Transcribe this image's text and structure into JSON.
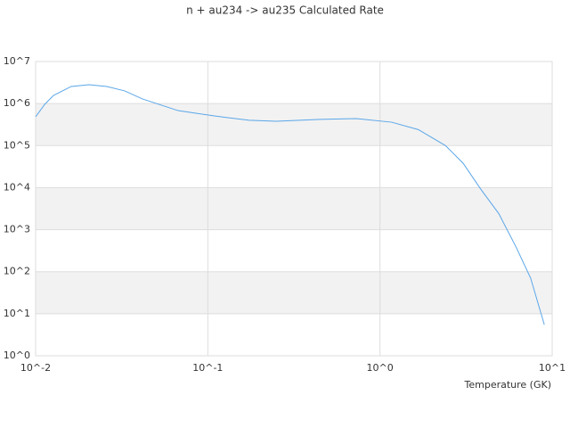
{
  "chart_data": {
    "type": "line",
    "title": "n + au234 -> au235 Calculated Rate",
    "x_label": "Temperature (GK)",
    "x": [
      0.01,
      0.0113,
      0.0127,
      0.0161,
      0.0204,
      0.0259,
      0.0329,
      0.0417,
      0.0672,
      0.108,
      0.174,
      0.25,
      0.45,
      0.73,
      1.17,
      1.67,
      2.4,
      3.04,
      3.84,
      4.9,
      6.2,
      7.5,
      9.0
    ],
    "series": [
      {
        "name": "rate",
        "color": "#5aa6e8",
        "values": [
          484000,
          960000,
          1560000,
          2550000,
          2800000,
          2550000,
          2000000,
          1290000,
          680000,
          510000,
          400000,
          380000,
          420000,
          440000,
          360000,
          240000,
          100000,
          38000,
          9300,
          2400,
          370,
          70,
          5.5
        ]
      }
    ],
    "xlim": [
      0.01,
      10
    ],
    "ylim": [
      1,
      10000000
    ],
    "xscale": "log",
    "yscale": "log",
    "xticks": [
      {
        "value": 0.01,
        "label": "10^-2"
      },
      {
        "value": 0.1,
        "label": "10^-1"
      },
      {
        "value": 1,
        "label": "10^0"
      },
      {
        "value": 10,
        "label": "10^1"
      }
    ],
    "yticks": [
      {
        "value": 1,
        "label": "10^0"
      },
      {
        "value": 10,
        "label": "10^1"
      },
      {
        "value": 100,
        "label": "10^2"
      },
      {
        "value": 1000,
        "label": "10^3"
      },
      {
        "value": 10000,
        "label": "10^4"
      },
      {
        "value": 100000,
        "label": "10^5"
      },
      {
        "value": 1000000,
        "label": "10^6"
      },
      {
        "value": 10000000,
        "label": "10^7"
      }
    ],
    "grid": true,
    "band_color": "#f2f2f2"
  }
}
